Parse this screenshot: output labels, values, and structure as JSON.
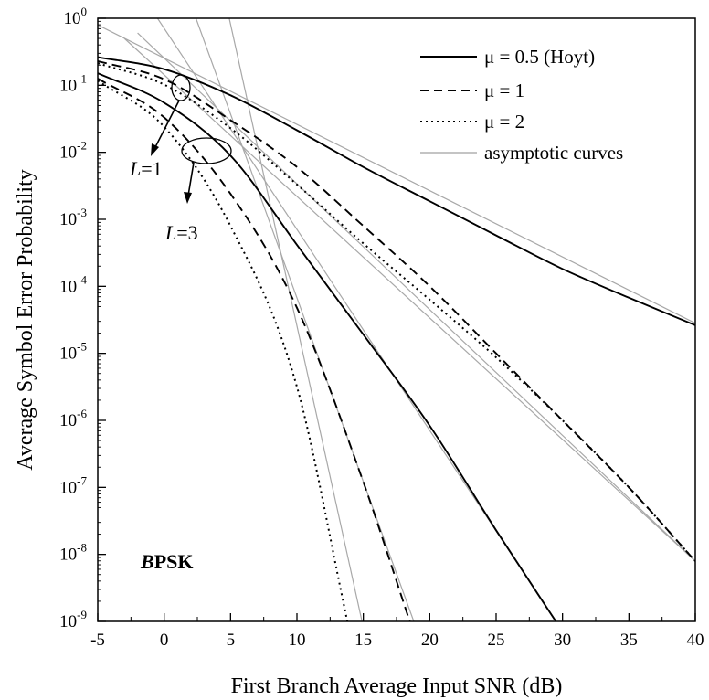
{
  "chart_data": {
    "type": "line",
    "xlabel": "First Branch Average Input SNR (dB)",
    "ylabel": "Average Symbol Error Probability",
    "xlim": [
      -5,
      40
    ],
    "ylim_log10": [
      -9,
      0
    ],
    "log_y": true,
    "grid": false,
    "legend_position": "top-right",
    "x_ticks": [
      "-5",
      "0",
      "5",
      "10",
      "15",
      "20",
      "25",
      "30",
      "35",
      "40"
    ],
    "y_ticks": [
      {
        "base": "10",
        "exp": "0"
      },
      {
        "base": "10",
        "exp": "-1"
      },
      {
        "base": "10",
        "exp": "-2"
      },
      {
        "base": "10",
        "exp": "-3"
      },
      {
        "base": "10",
        "exp": "-4"
      },
      {
        "base": "10",
        "exp": "-5"
      },
      {
        "base": "10",
        "exp": "-6"
      },
      {
        "base": "10",
        "exp": "-7"
      },
      {
        "base": "10",
        "exp": "-8"
      },
      {
        "base": "10",
        "exp": "-9"
      }
    ],
    "legend": [
      {
        "label": "μ = 0.5 (Hoyt)",
        "style": "solid",
        "color": "#000000"
      },
      {
        "label": "μ = 1",
        "style": "dashed",
        "color": "#000000"
      },
      {
        "label": "μ = 2",
        "style": "dotted",
        "color": "#000000"
      },
      {
        "label": "asymptotic curves",
        "style": "solid",
        "color": "#a0a0a0"
      }
    ],
    "annotations": [
      {
        "text": "L=1",
        "italic_part": "L",
        "rest": "=1"
      },
      {
        "text": "L=3",
        "italic_part": "L",
        "rest": "=3"
      },
      {
        "text": "BPSK",
        "italic_part": "B",
        "rest": "PSK"
      }
    ],
    "series": [
      {
        "name": "μ = 0.5 (Hoyt)",
        "group": "L=1",
        "style": "solid",
        "x": [
          -5,
          0,
          5,
          10,
          15,
          20,
          25,
          30,
          35,
          40
        ],
        "log10_y": [
          -0.58,
          -0.76,
          -1.15,
          -1.67,
          -2.22,
          -2.73,
          -3.24,
          -3.74,
          -4.17,
          -4.58
        ]
      },
      {
        "name": "μ = 1",
        "group": "L=1",
        "style": "dashed",
        "x": [
          -5,
          0,
          5,
          10,
          15,
          20,
          25,
          30,
          35,
          40
        ],
        "log10_y": [
          -0.64,
          -0.91,
          -1.52,
          -2.22,
          -3.1,
          -4.0,
          -5.0,
          -6.0,
          -7.0,
          -8.1
        ]
      },
      {
        "name": "μ = 2",
        "group": "L=1",
        "style": "dotted",
        "x": [
          -5,
          0,
          5,
          10,
          15,
          20,
          25,
          30,
          35,
          40
        ],
        "log10_y": [
          -0.67,
          -0.99,
          -1.64,
          -2.48,
          -3.36,
          -4.2,
          -5.06,
          -6.0,
          -7.0,
          -8.1
        ]
      },
      {
        "name": "μ = 0.5 (Hoyt)",
        "group": "L=3",
        "style": "solid",
        "x": [
          -5,
          0,
          5,
          10,
          15,
          20,
          25,
          29.5
        ],
        "log10_y": [
          -0.82,
          -1.26,
          -2.05,
          -3.38,
          -4.72,
          -6.08,
          -7.64,
          -9.0
        ]
      },
      {
        "name": "μ = 1",
        "group": "L=3",
        "style": "dashed",
        "x": [
          -5,
          0,
          5,
          10,
          15,
          18.5
        ],
        "log10_y": [
          -0.9,
          -1.48,
          -2.62,
          -4.32,
          -6.92,
          -9.0
        ]
      },
      {
        "name": "μ = 2",
        "group": "L=3",
        "style": "dotted",
        "x": [
          -5,
          0,
          5,
          10,
          13.8
        ],
        "log10_y": [
          -0.93,
          -1.62,
          -3.1,
          -5.5,
          -9.0
        ]
      },
      {
        "name": "asymptotic curves",
        "group": "asymptote",
        "style": "solid",
        "x": [
          -5,
          40
        ],
        "log10_y": [
          -0.1,
          -4.55
        ]
      },
      {
        "name": "asymptotic curves",
        "group": "asymptote",
        "style": "solid",
        "x": [
          -2,
          40
        ],
        "log10_y": [
          -0.22,
          -8.1
        ]
      },
      {
        "name": "asymptotic curves",
        "group": "asymptote",
        "style": "solid",
        "x": [
          -3,
          40
        ],
        "log10_y": [
          -0.3,
          -8.1
        ]
      },
      {
        "name": "asymptotic curves",
        "group": "asymptote",
        "style": "solid",
        "x": [
          -0.5,
          29.5
        ],
        "log10_y": [
          0.0,
          -9.0
        ]
      },
      {
        "name": "asymptotic curves",
        "group": "asymptote",
        "style": "solid",
        "x": [
          2.4,
          18.8
        ],
        "log10_y": [
          0.0,
          -9.0
        ]
      },
      {
        "name": "asymptotic curves",
        "group": "asymptote",
        "style": "solid",
        "x": [
          4.9,
          14.9
        ],
        "log10_y": [
          0.0,
          -9.0
        ]
      }
    ]
  }
}
